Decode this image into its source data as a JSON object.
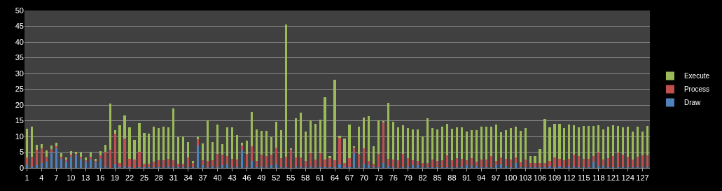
{
  "chart_data": {
    "type": "bar",
    "stacked": true,
    "categories": [
      "1",
      null,
      null,
      "4",
      null,
      null,
      "7",
      null,
      null,
      "10",
      null,
      null,
      "13",
      null,
      null,
      "16",
      null,
      null,
      "19",
      null,
      null,
      "22",
      null,
      null,
      "25",
      null,
      null,
      "28",
      null,
      null,
      "31",
      null,
      null,
      "34",
      null,
      null,
      "37",
      null,
      null,
      "40",
      null,
      null,
      "43",
      null,
      null,
      "46",
      null,
      null,
      "49",
      null,
      null,
      "52",
      null,
      null,
      "55",
      null,
      null,
      "58",
      null,
      null,
      "61",
      null,
      null,
      "64",
      null,
      null,
      "67",
      null,
      null,
      "70",
      null,
      null,
      "73",
      null,
      null,
      "76",
      null,
      null,
      "79",
      null,
      null,
      "82",
      null,
      null,
      "85",
      null,
      null,
      "88",
      null,
      null,
      "91",
      null,
      null,
      "94",
      null,
      null,
      "97",
      null,
      null,
      "100",
      null,
      null,
      "103",
      null,
      null,
      "106",
      null,
      null,
      "109",
      null,
      null,
      "112",
      null,
      null,
      "115",
      null,
      null,
      "118",
      null,
      null,
      "121",
      null,
      null,
      "124",
      null,
      null,
      "127",
      null
    ],
    "series": [
      {
        "name": "Draw",
        "color": "#4f81bd",
        "values": [
          0.8,
          0.5,
          0.8,
          1.5,
          2.0,
          4.8,
          6.2,
          2.8,
          2.0,
          3.5,
          4.0,
          2.8,
          2.0,
          2.6,
          1.8,
          3.0,
          0.5,
          null,
          1.2,
          0.2,
          0.5,
          0.3,
          null,
          0.3,
          0.2,
          0.2,
          0.2,
          0.2,
          0.2,
          0.4,
          0.2,
          0.2,
          0.2,
          0.2,
          0.2,
          7.2,
          0.9,
          0.2,
          0.5,
          0.2,
          0.9,
          1.1,
          0.2,
          0.2,
          5.6,
          0.2,
          2.2,
          0.2,
          0.4,
          0.2,
          0.9,
          1.1,
          0.2,
          0.2,
          null,
          0.4,
          0.2,
          0.2,
          0.4,
          0.2,
          0.4,
          0.2,
          0.2,
          0.2,
          1.1,
          0.2,
          0.2,
          4.7,
          0.2,
          1.3,
          0.9,
          0.2,
          0.2,
          1.6,
          0.7,
          0.2,
          null,
          0.2,
          0.4,
          0.9,
          0.9,
          0.2,
          0.2,
          0.2,
          0.2,
          0.2,
          0.2,
          0.2,
          0.2,
          0.4,
          0.9,
          0.7,
          0.7,
          0.2,
          0.2,
          0.2,
          0.9,
          1.1,
          0.7,
          0.2,
          1.6,
          0.2,
          0.2,
          0.2,
          0.2,
          0.2,
          0.2,
          0.4,
          0.2,
          0.4,
          0.2,
          0.4,
          0.4,
          0.2,
          0.2,
          0.2,
          2.0,
          0.7,
          0.7,
          0.2,
          0.2,
          0.2,
          0.2,
          0.2,
          0.2,
          0.2,
          0.2,
          0.2
        ]
      },
      {
        "name": "Process",
        "color": "#c0504d",
        "values": [
          2.5,
          3.0,
          4.9,
          4.8,
          1.5,
          1.1,
          0.7,
          0.8,
          0.6,
          0.7,
          0.5,
          0.8,
          0.5,
          1.0,
          0.5,
          1.1,
          4.7,
          5.7,
          9.6,
          1.4,
          8.9,
          2.5,
          2.7,
          4.9,
          1.2,
          1.1,
          1.8,
          2.3,
          2.3,
          2.5,
          2.3,
          1.1,
          1.1,
          3.2,
          1.4,
          2.0,
          1.6,
          2.0,
          2.0,
          4.3,
          3.4,
          2.7,
          2.7,
          2.5,
          1.5,
          4.3,
          4.7,
          2.0,
          3.9,
          3.6,
          3.4,
          5.4,
          2.9,
          3.4,
          5.7,
          3.0,
          3.2,
          2.0,
          4.3,
          2.5,
          4.3,
          2.5,
          2.9,
          2.3,
          8.5,
          1.4,
          2.9,
          1.8,
          4.3,
          5.0,
          1.3,
          1.1,
          4.3,
          12.8,
          2.2,
          2.5,
          2.4,
          4.3,
          2.7,
          1.6,
          1.3,
          1.4,
          1.4,
          2.5,
          2.0,
          2.3,
          3.8,
          2.3,
          2.9,
          2.5,
          1.6,
          2.4,
          1.3,
          2.5,
          2.5,
          3.6,
          1.3,
          2.3,
          2.2,
          2.5,
          1.8,
          1.6,
          2.5,
          1.4,
          1.4,
          1.4,
          1.4,
          1.8,
          3.2,
          2.5,
          2.3,
          2.5,
          3.9,
          3.6,
          2.7,
          2.7,
          1.8,
          4.2,
          2.0,
          2.9,
          3.6,
          4.7,
          4.1,
          3.4,
          2.5,
          3.4,
          3.8,
          3.8
        ]
      },
      {
        "name": "Execute",
        "color": "#9bbb59",
        "values": [
          9.2,
          9.7,
          1.6,
          1.2,
          2.0,
          1.2,
          1.1,
          1.1,
          0.7,
          1.1,
          0.7,
          1.2,
          0.8,
          1.2,
          0.7,
          1.2,
          2.2,
          14.7,
          1.2,
          12.0,
          7.3,
          10.1,
          6.1,
          9.0,
          9.7,
          9.6,
          11.1,
          10.2,
          10.6,
          10.0,
          16.5,
          8.5,
          8.7,
          4.9,
          0.7,
          0.8,
          5.3,
          13.0,
          5.7,
          9.3,
          3.2,
          9.1,
          10.0,
          7.7,
          1.0,
          4.2,
          10.9,
          10.0,
          7.5,
          8.0,
          5.5,
          8.1,
          8.9,
          41.9,
          0.5,
          12.4,
          14.2,
          9.4,
          10.4,
          11.3,
          10.7,
          19.8,
          0.6,
          25.4,
          0.6,
          7.7,
          10.7,
          0.5,
          8.6,
          9.7,
          14.3,
          5.7,
          10.6,
          0.5,
          17.8,
          12.0,
          10.4,
          9.1,
          9.6,
          9.7,
          10.0,
          8.4,
          14.2,
          10.0,
          10.0,
          10.6,
          10.0,
          10.0,
          9.8,
          10.0,
          9.1,
          8.9,
          10.0,
          10.4,
          10.4,
          9.3,
          11.6,
          7.9,
          9.1,
          10.0,
          9.7,
          10.0,
          10.0,
          2.1,
          2.1,
          4.4,
          14.0,
          10.7,
          10.6,
          11.1,
          10.2,
          10.9,
          9.3,
          9.1,
          10.5,
          10.5,
          9.6,
          8.7,
          9.5,
          10.0,
          9.8,
          8.5,
          8.6,
          9.5,
          8.9,
          9.5,
          7.6,
          9.4
        ]
      }
    ],
    "ylim": [
      0,
      50
    ],
    "yticks": [
      0,
      5,
      10,
      15,
      20,
      25,
      30,
      35,
      40,
      45,
      50
    ],
    "grid": "y",
    "legend": "right"
  }
}
